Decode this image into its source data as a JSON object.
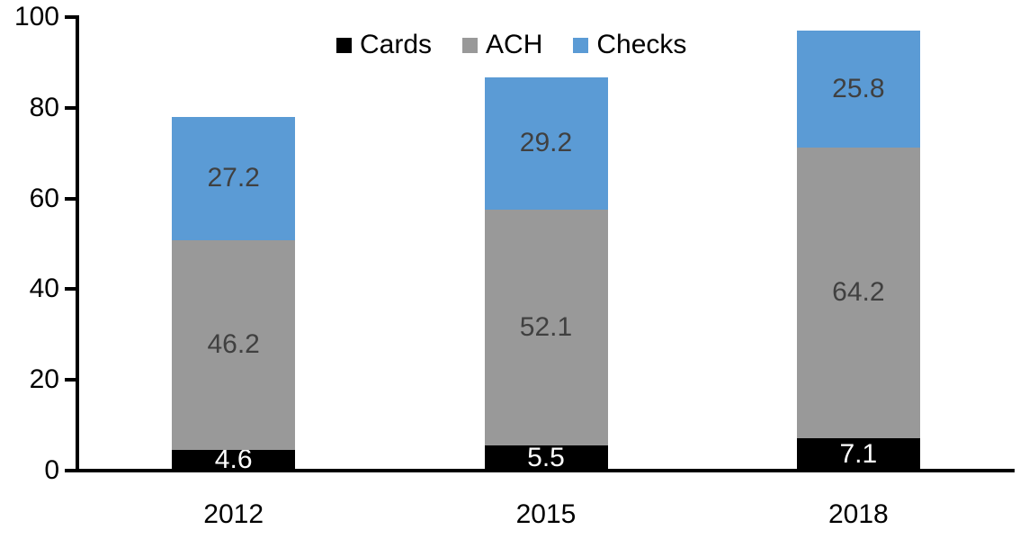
{
  "chart_data": {
    "type": "bar",
    "stacked": true,
    "title": "",
    "categories": [
      "2012",
      "2015",
      "2018"
    ],
    "series": [
      {
        "name": "Cards",
        "color": "#000000",
        "label_color": "#FFFFFF",
        "values": [
          4.6,
          5.5,
          7.1
        ]
      },
      {
        "name": "ACH",
        "color": "#999999",
        "label_color": "#404040",
        "values": [
          46.2,
          52.1,
          64.2
        ]
      },
      {
        "name": "Checks",
        "color": "#5B9BD5",
        "label_color": "#404040",
        "values": [
          27.2,
          29.2,
          25.8
        ]
      }
    ],
    "ylim": [
      0,
      100
    ],
    "ytick_step": 20,
    "ytick_labels": [
      "0",
      "20",
      "40",
      "60",
      "80",
      "100"
    ],
    "grid": false,
    "legend_position": "top-center",
    "axis_color": "#000000",
    "text_color": "#000000",
    "segment_label_decimals": 1
  }
}
